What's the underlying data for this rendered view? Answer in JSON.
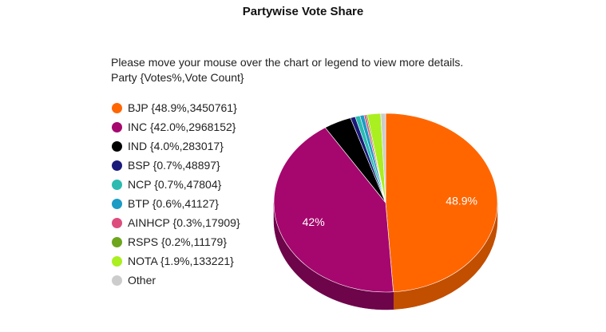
{
  "title": "Partywise Vote Share",
  "instructions": {
    "line1": "Please move your mouse over the chart or legend to view more details.",
    "line2": "Party {Votes%,Vote Count}"
  },
  "legend": [
    {
      "label": "BJP {48.9%,3450761}",
      "color": "#FF6600"
    },
    {
      "label": "INC {42.0%,2968152}",
      "color": "#A5076E"
    },
    {
      "label": "IND {4.0%,283017}",
      "color": "#000000"
    },
    {
      "label": "BSP {0.7%,48897}",
      "color": "#1A1A7A"
    },
    {
      "label": "NCP {0.7%,47804}",
      "color": "#2BBBB0"
    },
    {
      "label": "BTP {0.6%,41127}",
      "color": "#1B9CC4"
    },
    {
      "label": "AINHCP {0.3%,17909}",
      "color": "#DC4D7D"
    },
    {
      "label": "RSPS {0.2%,11179}",
      "color": "#6DA51C"
    },
    {
      "label": "NOTA {1.9%,133221}",
      "color": "#AAEF1F"
    },
    {
      "label": "Other",
      "color": "#CCCCCC"
    }
  ],
  "chart_data": {
    "type": "pie",
    "title": "Partywise Vote Share",
    "categories": [
      "BJP",
      "INC",
      "IND",
      "BSP",
      "NCP",
      "BTP",
      "AINHCP",
      "RSPS",
      "NOTA",
      "Other"
    ],
    "values": [
      48.9,
      42.0,
      4.0,
      0.7,
      0.7,
      0.6,
      0.3,
      0.2,
      1.9,
      0.7
    ],
    "vote_counts": [
      3450761,
      2968152,
      283017,
      48897,
      47804,
      41127,
      17909,
      11179,
      133221,
      null
    ],
    "colors": [
      "#FF6600",
      "#A5076E",
      "#000000",
      "#1A1A7A",
      "#2BBBB0",
      "#1B9CC4",
      "#DC4D7D",
      "#6DA51C",
      "#AAEF1F",
      "#CCCCCC"
    ],
    "side_colors": [
      "#C24E00",
      "#6E044A",
      "#000000",
      "#10104F",
      "#1C7D76",
      "#126883",
      "#933354",
      "#486E12",
      "#72A014",
      "#888888"
    ],
    "data_labels": [
      {
        "text": "48.9%",
        "slice": "BJP"
      },
      {
        "text": "42%",
        "slice": "INC"
      }
    ],
    "style": "3d-pie",
    "legend_position": "left"
  }
}
